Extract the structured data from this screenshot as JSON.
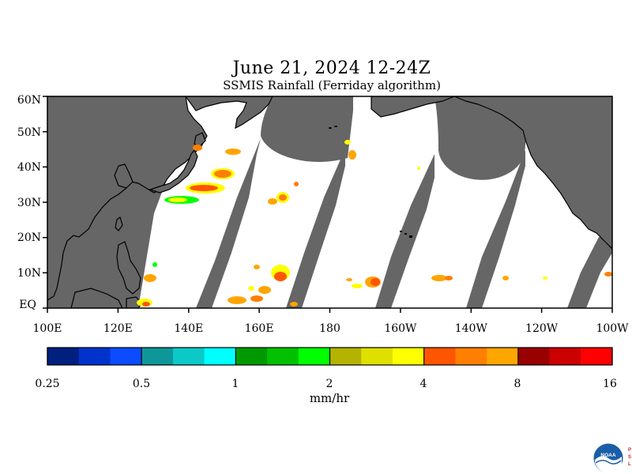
{
  "title": "June 21, 2024 12-24Z",
  "subtitle": "SSMIS Rainfall (Ferriday algorithm)",
  "map": {
    "lon_range": [
      "100E",
      "100W"
    ],
    "lat_range": [
      "EQ",
      "60N"
    ],
    "lat_labels": [
      "60N",
      "50N",
      "40N",
      "30N",
      "20N",
      "10N",
      "EQ"
    ],
    "lon_labels": [
      "100E",
      "120E",
      "140E",
      "160E",
      "180",
      "160W",
      "140W",
      "120W",
      "100W"
    ],
    "land_color": "#666666",
    "nodata_color": "#666666",
    "ocean_color": "#ffffff"
  },
  "colorbar": {
    "colors": [
      "#001f7f",
      "#0033cc",
      "#0b4cff",
      "#0d9799",
      "#0bc9c9",
      "#00ffff",
      "#009900",
      "#00c000",
      "#00ff00",
      "#b3b300",
      "#e0e000",
      "#ffff00",
      "#ff5500",
      "#ff7f00",
      "#ffa500",
      "#990000",
      "#cc0000",
      "#ff0000"
    ],
    "tick_labels": [
      "0.25",
      "0.5",
      "1",
      "2",
      "4",
      "8",
      "16"
    ],
    "unit": "mm/hr"
  },
  "logo": {
    "text": "NOAA",
    "side_letters": "PSL"
  }
}
